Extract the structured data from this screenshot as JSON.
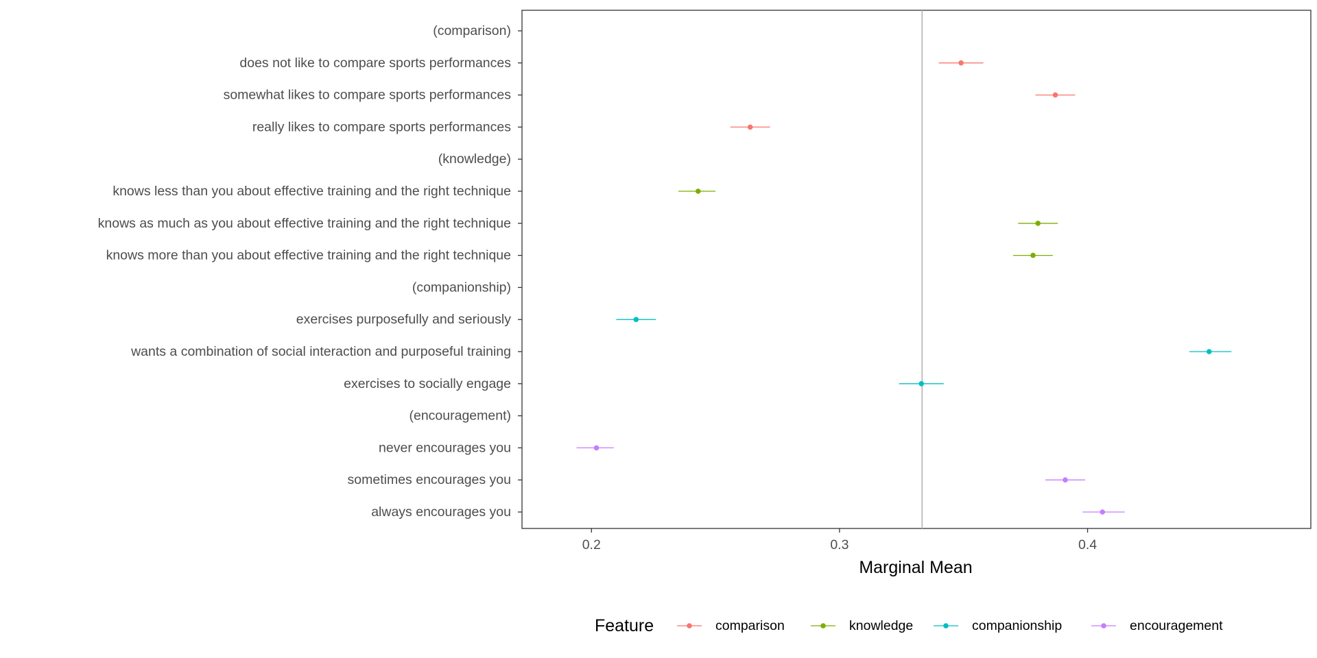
{
  "chart_data": {
    "type": "scatter",
    "subtype": "dot-and-whisker",
    "title": "",
    "xlabel": "Marginal Mean",
    "ylabel": "",
    "xlim": [
      0.172,
      0.49
    ],
    "xticks": [
      0.2,
      0.3,
      0.4
    ],
    "xtick_labels": [
      "0.2",
      "0.3",
      "0.4"
    ],
    "reference_line": 0.3333,
    "grid": false,
    "legend": {
      "title": "Feature",
      "position": "bottom",
      "entries": [
        "comparison",
        "knowledge",
        "companionship",
        "encouragement"
      ]
    },
    "colors": {
      "comparison": "#F8766D",
      "knowledge": "#7CAE00",
      "companionship": "#00BFC4",
      "encouragement": "#C77CFF",
      "reference_line": "#b3b3b3",
      "panel_border": "#333333"
    },
    "categories": [
      "(comparison)",
      "does not like to compare sports performances",
      "somewhat likes to compare sports performances",
      "really likes to compare sports performances",
      "(knowledge)",
      "knows less than you about effective training and the right technique",
      "knows as much as you about effective training and the right technique",
      "knows more than you about effective training and the right technique",
      "(companionship)",
      "exercises purposefully and seriously",
      "wants a combination of social interaction and purposeful training",
      "exercises to socially engage",
      "(encouragement)",
      "never encourages you",
      "sometimes encourages you",
      "always encourages you"
    ],
    "series": [
      {
        "name": "comparison",
        "points": [
          {
            "category": "does not like to compare sports performances",
            "estimate": 0.349,
            "lower": 0.34,
            "upper": 0.358
          },
          {
            "category": "somewhat likes to compare sports performances",
            "estimate": 0.387,
            "lower": 0.379,
            "upper": 0.395
          },
          {
            "category": "really likes to compare sports performances",
            "estimate": 0.264,
            "lower": 0.256,
            "upper": 0.272
          }
        ]
      },
      {
        "name": "knowledge",
        "points": [
          {
            "category": "knows less than you about effective training and the right technique",
            "estimate": 0.243,
            "lower": 0.235,
            "upper": 0.25
          },
          {
            "category": "knows as much as you about effective training and the right technique",
            "estimate": 0.38,
            "lower": 0.372,
            "upper": 0.388
          },
          {
            "category": "knows more than you about effective training and the right technique",
            "estimate": 0.378,
            "lower": 0.37,
            "upper": 0.386
          }
        ]
      },
      {
        "name": "companionship",
        "points": [
          {
            "category": "exercises purposefully and seriously",
            "estimate": 0.218,
            "lower": 0.21,
            "upper": 0.226
          },
          {
            "category": "wants a combination of social interaction and purposeful training",
            "estimate": 0.449,
            "lower": 0.441,
            "upper": 0.458
          },
          {
            "category": "exercises to socially engage",
            "estimate": 0.333,
            "lower": 0.324,
            "upper": 0.342
          }
        ]
      },
      {
        "name": "encouragement",
        "points": [
          {
            "category": "never encourages you",
            "estimate": 0.202,
            "lower": 0.194,
            "upper": 0.209
          },
          {
            "category": "sometimes encourages you",
            "estimate": 0.391,
            "lower": 0.383,
            "upper": 0.399
          },
          {
            "category": "always encourages you",
            "estimate": 0.406,
            "lower": 0.398,
            "upper": 0.415
          }
        ]
      }
    ]
  }
}
